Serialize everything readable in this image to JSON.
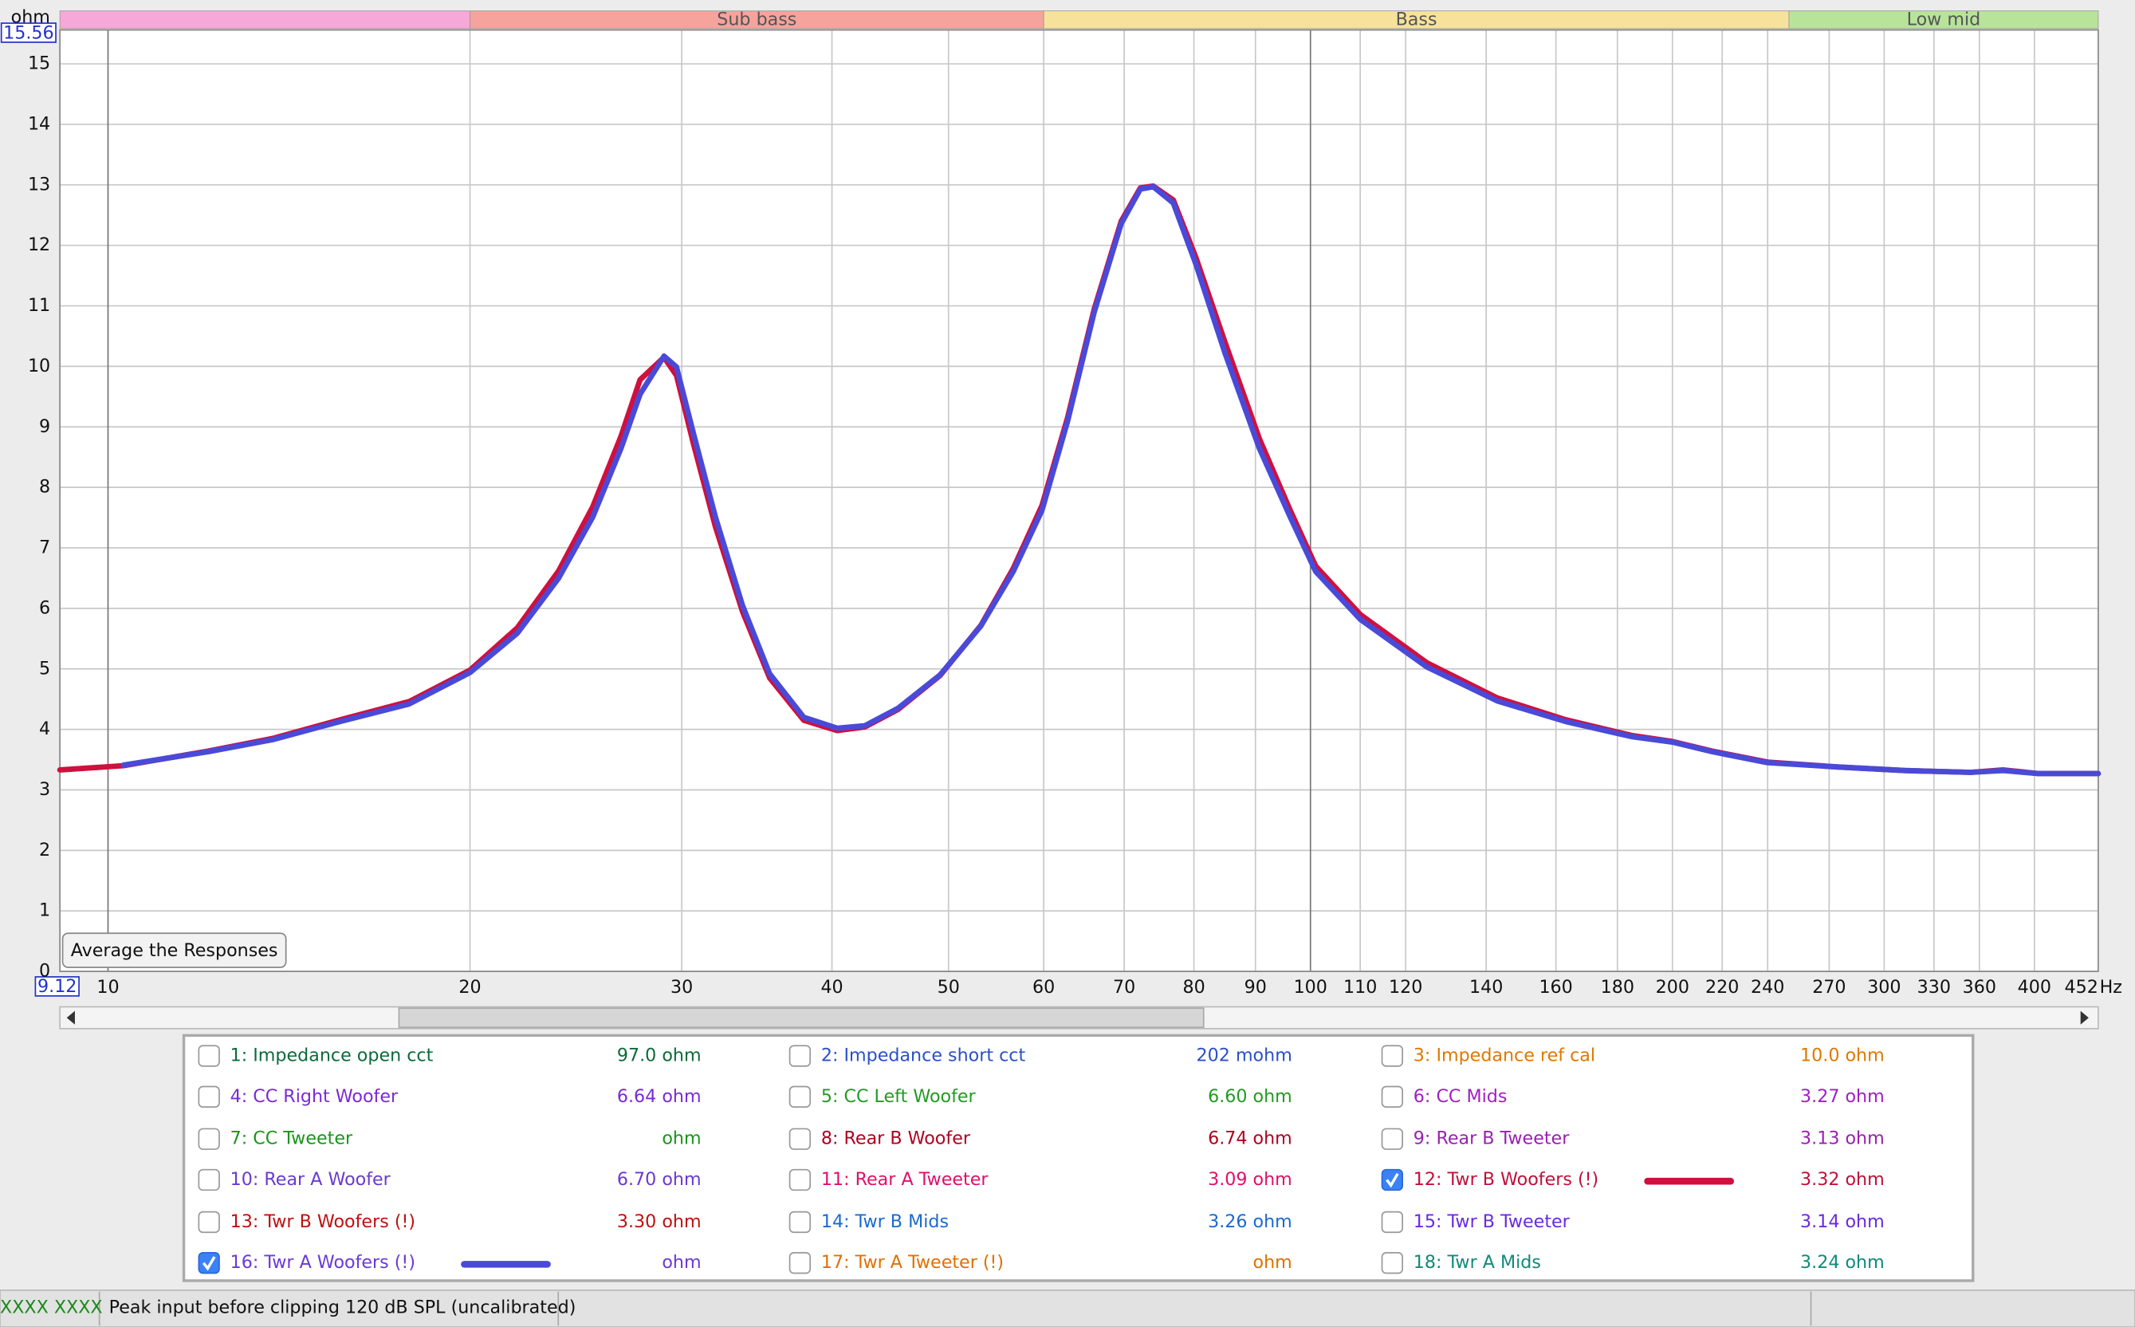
{
  "chart_data": {
    "type": "line",
    "y_unit": "ohm",
    "x_unit": "Hz",
    "log_x": true,
    "grid": true,
    "xlim": [
      9.12,
      452
    ],
    "ylim": [
      0,
      15.56
    ],
    "xticks": [
      10,
      20,
      30,
      40,
      50,
      60,
      70,
      80,
      90,
      100,
      110,
      120,
      140,
      160,
      180,
      200,
      220,
      240,
      270,
      300,
      330,
      360,
      400
    ],
    "yticks": [
      0,
      1,
      2,
      3,
      4,
      5,
      6,
      7,
      8,
      9,
      10,
      11,
      12,
      13,
      14,
      15
    ],
    "bands": [
      {
        "to": 20,
        "color": "#f6a8d8"
      },
      {
        "name": "Sub bass",
        "from": 20,
        "to": 60,
        "color": "#f5a39c"
      },
      {
        "name": "Bass",
        "from": 60,
        "to": 250,
        "color": "#f7e29b"
      },
      {
        "name": "Low mid",
        "from": 250,
        "color": "#b8e49a"
      }
    ],
    "x": [
      9.12,
      10.3,
      12.1,
      13.7,
      15.6,
      17.8,
      20,
      21.9,
      23.7,
      25.3,
      26.7,
      27.7,
      29.0,
      29.7,
      30.7,
      32.0,
      33.7,
      35.5,
      37.9,
      40.4,
      42.6,
      45.4,
      49.2,
      53.2,
      56.6,
      59.8,
      62.8,
      66.1,
      69.6,
      72.2,
      74.0,
      76.9,
      80.3,
      84.9,
      90.7,
      96.2,
      101,
      110,
      125,
      143,
      163,
      185,
      200,
      216,
      240,
      274,
      312,
      354,
      377,
      403,
      452
    ],
    "series": [
      {
        "name": "12: Twr B Woofers (!)",
        "color": "#d0103e",
        "values": [
          3.33,
          3.4,
          3.64,
          3.85,
          4.16,
          4.46,
          4.98,
          5.68,
          6.62,
          7.68,
          8.84,
          9.78,
          10.15,
          9.85,
          8.7,
          7.35,
          5.95,
          4.85,
          4.15,
          3.98,
          4.04,
          4.33,
          4.89,
          5.72,
          6.66,
          7.7,
          9.15,
          10.95,
          12.4,
          12.95,
          12.98,
          12.75,
          11.8,
          10.4,
          8.8,
          7.62,
          6.7,
          5.9,
          5.1,
          4.52,
          4.16,
          3.9,
          3.8,
          3.64,
          3.46,
          3.38,
          3.32,
          3.29,
          3.33,
          3.27,
          3.27
        ]
      },
      {
        "name": "16: Twr A Woofers (!)",
        "color": "#4a4ad8",
        "values": [
          null,
          3.41,
          3.63,
          3.83,
          4.13,
          4.42,
          4.94,
          5.59,
          6.5,
          7.51,
          8.64,
          9.54,
          10.17,
          9.99,
          8.87,
          7.51,
          6.05,
          4.92,
          4.2,
          4.02,
          4.06,
          4.35,
          4.9,
          5.71,
          6.61,
          7.62,
          9.09,
          10.9,
          12.36,
          12.93,
          12.97,
          12.7,
          11.69,
          10.22,
          8.64,
          7.51,
          6.61,
          5.82,
          5.03,
          4.47,
          4.13,
          3.88,
          3.79,
          3.63,
          3.45,
          3.38,
          3.32,
          3.29,
          3.32,
          3.27,
          3.27
        ]
      }
    ]
  },
  "button": "Average the Responses",
  "measurements": [
    {
      "label": "1: Impedance open cct",
      "reading": "97.0 ohm",
      "color": "#0b6b3a",
      "checked": false
    },
    {
      "label": "2: Impedance short cct",
      "reading": "202 mohm",
      "color": "#2b50c8",
      "checked": false
    },
    {
      "label": "3: Impedance ref cal",
      "reading": "10.0 ohm",
      "color": "#e07800",
      "checked": false
    },
    {
      "label": "4: CC Right Woofer",
      "reading": "6.64 ohm",
      "color": "#7a2ad6",
      "checked": false
    },
    {
      "label": "5: CC Left Woofer",
      "reading": "6.60 ohm",
      "color": "#239a23",
      "checked": false
    },
    {
      "label": "6: CC Mids",
      "reading": "3.27 ohm",
      "color": "#a020c0",
      "checked": false
    },
    {
      "label": "7: CC Tweeter",
      "reading": "ohm",
      "color": "#1a951a",
      "checked": false
    },
    {
      "label": "8: Rear B Woofer",
      "reading": "6.74 ohm",
      "color": "#b00020",
      "checked": false
    },
    {
      "label": "9: Rear B Tweeter",
      "reading": "3.13 ohm",
      "color": "#9a20b0",
      "checked": false
    },
    {
      "label": "10: Rear A Woofer",
      "reading": "6.70 ohm",
      "color": "#6a3ad0",
      "checked": false
    },
    {
      "label": "11: Rear A Tweeter",
      "reading": "3.09 ohm",
      "color": "#e0106a",
      "checked": false
    },
    {
      "reading": "3.32 ohm",
      "color": "#c0103a",
      "checked": true
    },
    {
      "label": "13: Twr B Woofers (!)",
      "reading": "3.30 ohm",
      "color": "#c01010",
      "checked": false
    },
    {
      "label": "14: Twr B Mids",
      "reading": "3.26 ohm",
      "color": "#1a6ad0",
      "checked": false
    },
    {
      "label": "15: Twr B Tweeter",
      "reading": "3.14 ohm",
      "color": "#6a2ae0",
      "checked": false
    },
    {
      "reading": "ohm",
      "color": "#6a3ad8",
      "checked": true
    },
    {
      "label": "17: Twr A Tweeter (!)",
      "reading": "ohm",
      "color": "#e07000",
      "checked": false
    },
    {
      "label": "18: Twr A Mids",
      "reading": "3.24 ohm",
      "color": "#108a7a",
      "checked": false
    }
  ],
  "status": {
    "left": "XXXX XXXX",
    "message": "Peak input before clipping 120 dB SPL (uncalibrated)"
  }
}
